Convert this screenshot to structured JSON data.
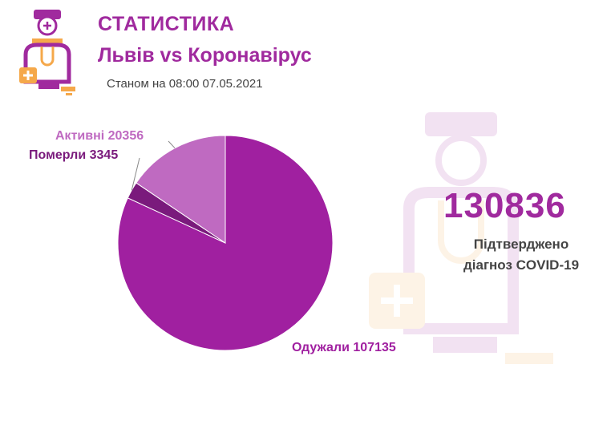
{
  "header": {
    "title": "СТАТИСТИКА",
    "subtitle": "Львів vs Коронавірус",
    "date": "Станом на 08:00 07.05.2021"
  },
  "colors": {
    "brand": "#a02a9e",
    "recovered": "#a020a0",
    "died": "#7a1a7c",
    "active": "#bf6ac1",
    "accent_orange": "#f5a84a"
  },
  "summary": {
    "total": "130836",
    "caption_line1": "Підтверджено",
    "caption_line2": "діагноз COVID-19"
  },
  "chart_data": {
    "type": "pie",
    "slices": [
      {
        "label": "Одужали 107135",
        "name": "Одужали",
        "value": 107135,
        "color": "#a020a0"
      },
      {
        "label": "Померли 3345",
        "name": "Померли",
        "value": 3345,
        "color": "#7a1a7c"
      },
      {
        "label": "Активні 20356",
        "name": "Активні",
        "value": 20356,
        "color": "#bf6ac1"
      }
    ]
  }
}
